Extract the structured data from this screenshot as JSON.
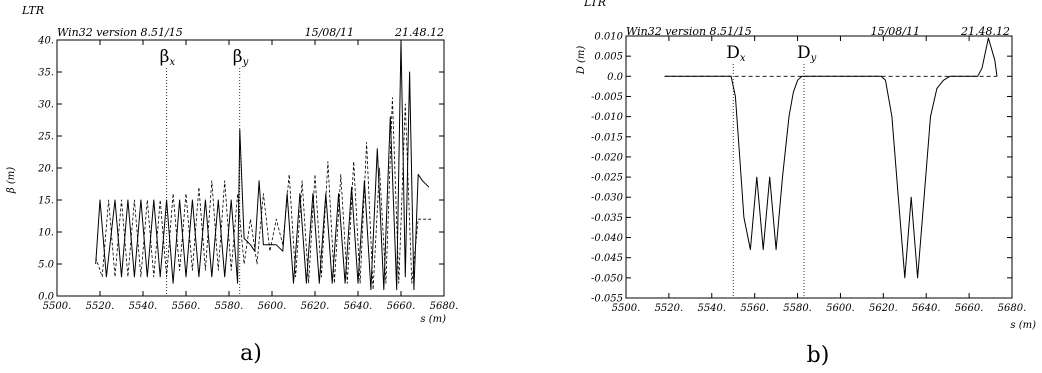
{
  "chart_data": [
    {
      "id": "a",
      "type": "line",
      "panel_label": "a)",
      "program": "LTR",
      "header_left": "Win32 version 8.51/15",
      "header_date": "15/08/11",
      "header_time": "21.48.12",
      "ylabel": "β (m)",
      "xlabel": "s (m)",
      "xlim": [
        5500,
        5680
      ],
      "ylim": [
        0,
        40
      ],
      "xticks": [
        "5500.",
        "5520.",
        "5540.",
        "5560.",
        "5580.",
        "5600.",
        "5620.",
        "5640.",
        "5660.",
        "5680."
      ],
      "yticks": [
        "0.0",
        "5.0",
        "10.",
        "15.",
        "20.",
        "25.",
        "30.",
        "35.",
        "40."
      ],
      "markers": [
        {
          "main": "β",
          "sub": "x",
          "x": 5551
        },
        {
          "main": "β",
          "sub": "y",
          "x": 5585
        }
      ],
      "series": [
        {
          "style": "solid",
          "x": [
            5518,
            5520,
            5523,
            5527,
            5530,
            5533,
            5536,
            5539,
            5542,
            5545,
            5548,
            5551,
            5554,
            5557,
            5560,
            5563,
            5566,
            5569,
            5572,
            5575,
            5578,
            5581,
            5584,
            5585,
            5587,
            5590,
            5592,
            5594,
            5596,
            5598,
            5602,
            5605,
            5607,
            5610,
            5613,
            5616,
            5619,
            5622,
            5625,
            5628,
            5631,
            5634,
            5637,
            5640,
            5643,
            5646,
            5649,
            5652,
            5655,
            5658,
            5660,
            5662,
            5664,
            5666,
            5668,
            5670,
            5673
          ],
          "values": [
            5,
            15,
            3,
            15,
            3,
            15,
            3,
            15,
            3,
            15,
            3,
            15,
            2,
            15,
            3,
            15,
            3,
            15,
            3,
            15,
            3,
            15,
            2,
            26,
            9,
            8,
            7,
            18,
            8,
            8,
            8,
            7,
            16,
            2,
            16,
            2,
            16,
            2,
            16,
            2,
            16,
            2,
            17,
            2,
            18,
            1,
            23,
            1,
            28,
            1,
            40,
            3,
            35,
            1,
            19,
            18,
            17
          ]
        },
        {
          "style": "dashed",
          "x": [
            5518,
            5521,
            5524,
            5527,
            5530,
            5533,
            5536,
            5539,
            5542,
            5545,
            5548,
            5551,
            5554,
            5557,
            5560,
            5563,
            5566,
            5569,
            5572,
            5575,
            5578,
            5581,
            5584,
            5587,
            5590,
            5593,
            5596,
            5599,
            5602,
            5605,
            5608,
            5611,
            5614,
            5617,
            5620,
            5623,
            5626,
            5629,
            5632,
            5635,
            5638,
            5641,
            5644,
            5647,
            5650,
            5653,
            5656,
            5659,
            5662,
            5665,
            5668,
            5671,
            5674
          ],
          "values": [
            6,
            3,
            15,
            3,
            15,
            3,
            15,
            3,
            15,
            3,
            15,
            3,
            16,
            4,
            16,
            4,
            17,
            4,
            18,
            4,
            18,
            4,
            16,
            5,
            12,
            5,
            16,
            7,
            12,
            8,
            19,
            3,
            18,
            2,
            19,
            3,
            21,
            2,
            19,
            2,
            21,
            2,
            24,
            1,
            20,
            2,
            31,
            2,
            30,
            2,
            12,
            12,
            12
          ]
        }
      ]
    },
    {
      "id": "b",
      "type": "line",
      "panel_label": "b)",
      "program": "LTR",
      "header_left": "Win32 version 8.51/15",
      "header_date": "15/08/11",
      "header_time": "21.48.12",
      "ylabel": "D (m)",
      "xlabel": "s (m)",
      "xlim": [
        5500,
        5680
      ],
      "ylim": [
        -0.055,
        0.01
      ],
      "xticks": [
        "5500.",
        "5520.",
        "5540.",
        "5560.",
        "5580.",
        "5600.",
        "5620.",
        "5640.",
        "5660.",
        "5680."
      ],
      "yticks": [
        "0.010",
        "0.005",
        "0.0",
        "-0.005",
        "-0.010",
        "-0.015",
        "-0.020",
        "-0.025",
        "-0.030",
        "-0.035",
        "-0.040",
        "-0.045",
        "-0.050",
        "-0.055"
      ],
      "markers": [
        {
          "main": "D",
          "sub": "x",
          "x": 5550
        },
        {
          "main": "D",
          "sub": "y",
          "x": 5583
        }
      ],
      "reference_line": {
        "style": "dashed",
        "y": 0.0,
        "x": [
          5518,
          5673
        ]
      },
      "series": [
        {
          "style": "solid",
          "x": [
            5518,
            5549,
            5551,
            5553,
            5555,
            5558,
            5561,
            5564,
            5567,
            5570,
            5573,
            5576,
            5578,
            5580,
            5582,
            5584,
            5619,
            5621,
            5624,
            5627,
            5630,
            5633,
            5636,
            5639,
            5642,
            5645,
            5648,
            5651,
            5664,
            5666,
            5669,
            5672,
            5673
          ],
          "values": [
            0.0,
            0.0,
            -0.005,
            -0.02,
            -0.035,
            -0.043,
            -0.025,
            -0.043,
            -0.025,
            -0.043,
            -0.025,
            -0.01,
            -0.004,
            -0.001,
            0.0,
            0.0,
            0.0,
            -0.001,
            -0.01,
            -0.03,
            -0.05,
            -0.03,
            -0.05,
            -0.03,
            -0.01,
            -0.003,
            -0.001,
            0.0,
            0.0,
            0.002,
            0.0095,
            0.004,
            0.0
          ]
        }
      ]
    }
  ]
}
